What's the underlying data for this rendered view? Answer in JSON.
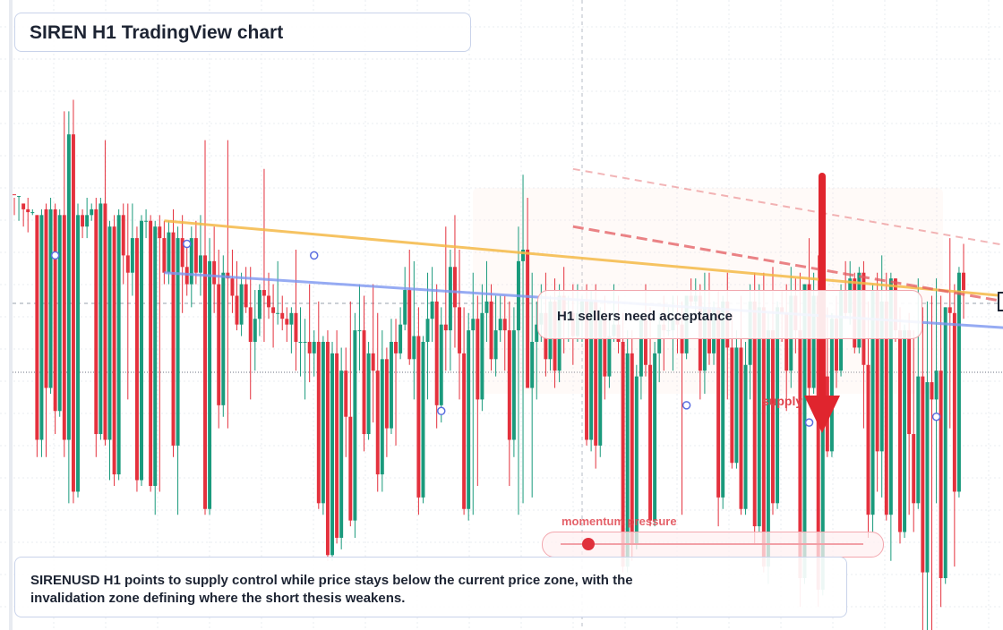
{
  "title": "SIREN H1 TradingView chart",
  "callout_text": "H1 sellers need acceptance",
  "supply_label": "supply",
  "momentum_label": "momentum pressure",
  "momentum_level": 0.07,
  "note_text": "SIRENUSD H1 points to supply control while price stays below the current price zone, with the invalidation zone defining where the short thesis weakens.",
  "colors": {
    "bull": "#1a9a7c",
    "bear": "#e4313d",
    "resistance": "#f5b947",
    "trend": "#7c96f0",
    "dashed": "#e35a5f",
    "arrow": "#e0252e"
  },
  "chart_data": {
    "type": "candlestick",
    "title": "SIREN H1 TradingView chart",
    "timeframe": "H1",
    "ylim": [
      0,
      100
    ],
    "candles": [
      [
        75.6,
        75,
        72,
        75.5
      ],
      [
        75.3,
        75.3,
        71,
        75.3
      ],
      [
        74,
        74,
        70,
        73
      ],
      [
        73,
        75,
        69,
        72.5
      ],
      [
        72.5,
        73,
        72,
        72.5
      ],
      [
        72,
        72,
        30,
        33
      ],
      [
        33,
        73,
        30,
        72
      ],
      [
        73,
        74,
        30,
        42
      ],
      [
        42,
        75,
        41,
        73
      ],
      [
        73,
        74,
        34,
        38
      ],
      [
        38,
        73,
        37,
        72
      ],
      [
        72,
        90,
        30,
        33
      ],
      [
        33,
        90,
        22,
        86
      ],
      [
        86,
        92,
        22,
        24
      ],
      [
        24,
        74,
        23,
        72
      ],
      [
        72,
        73,
        68,
        70
      ],
      [
        70,
        75,
        68,
        72
      ],
      [
        72,
        74,
        71,
        73
      ],
      [
        73,
        75,
        30,
        34
      ],
      [
        34,
        75,
        33,
        74
      ],
      [
        74,
        85,
        32,
        33
      ],
      [
        33,
        71,
        26,
        70
      ],
      [
        70,
        72,
        25,
        27
      ],
      [
        27,
        73,
        26,
        72
      ],
      [
        72,
        74,
        60,
        65
      ],
      [
        65,
        74,
        40,
        62
      ],
      [
        62,
        74,
        58,
        68
      ],
      [
        68,
        70,
        24,
        26
      ],
      [
        26,
        72,
        25,
        71
      ],
      [
        71,
        73,
        68,
        71
      ],
      [
        71,
        72,
        24,
        25
      ],
      [
        25,
        71,
        20,
        70
      ],
      [
        70,
        72,
        24,
        68
      ],
      [
        68,
        71,
        60,
        62
      ],
      [
        62,
        71,
        60,
        69
      ],
      [
        69,
        73,
        30,
        32
      ],
      [
        32,
        70,
        20,
        68
      ],
      [
        68,
        72,
        55,
        63
      ],
      [
        63,
        67,
        58,
        60
      ],
      [
        60,
        70,
        56,
        68
      ],
      [
        68,
        71,
        60,
        62
      ],
      [
        62,
        72,
        58,
        65
      ],
      [
        65,
        85,
        20,
        21
      ],
      [
        21,
        68,
        20,
        64
      ],
      [
        64,
        70,
        55,
        60
      ],
      [
        60,
        66,
        35,
        39
      ],
      [
        39,
        65,
        37,
        62
      ],
      [
        62,
        85,
        35,
        61
      ],
      [
        61,
        66,
        55,
        58
      ],
      [
        58,
        64,
        52,
        53
      ],
      [
        53,
        62,
        51,
        60
      ],
      [
        60,
        63,
        55,
        56
      ],
      [
        56,
        63,
        40,
        50
      ],
      [
        50,
        59,
        45,
        54
      ],
      [
        54,
        60,
        51,
        59
      ],
      [
        59,
        80,
        50,
        58
      ],
      [
        58,
        62,
        54,
        56
      ],
      [
        56,
        60,
        49,
        55
      ],
      [
        55,
        64,
        53,
        55
      ],
      [
        55,
        58,
        52,
        54
      ],
      [
        54,
        56,
        50,
        53
      ],
      [
        53,
        56,
        48,
        55
      ],
      [
        55,
        66,
        45,
        50
      ],
      [
        50,
        56,
        44,
        50
      ],
      [
        50,
        54,
        40,
        50
      ],
      [
        50,
        60,
        43,
        48
      ],
      [
        48,
        52,
        44,
        50
      ],
      [
        50,
        57,
        21,
        22
      ],
      [
        22,
        51,
        20,
        50
      ],
      [
        50,
        52,
        12,
        13
      ],
      [
        13,
        50,
        12,
        48
      ],
      [
        48,
        52,
        15,
        16
      ],
      [
        16,
        49,
        14,
        45
      ],
      [
        45,
        49,
        30,
        37
      ],
      [
        37,
        57,
        18,
        19
      ],
      [
        19,
        55,
        16,
        52
      ],
      [
        52,
        60,
        45,
        52
      ],
      [
        52,
        58,
        31,
        34
      ],
      [
        34,
        50,
        33,
        48
      ],
      [
        48,
        60,
        36,
        45
      ],
      [
        45,
        55,
        24,
        27
      ],
      [
        27,
        52,
        24,
        47
      ],
      [
        47,
        49,
        30,
        35
      ],
      [
        35,
        54,
        34,
        50
      ],
      [
        50,
        54,
        32,
        48
      ],
      [
        48,
        56,
        47,
        53
      ],
      [
        53,
        63,
        52,
        59
      ],
      [
        59,
        66,
        46,
        47
      ],
      [
        47,
        64,
        40,
        51
      ],
      [
        51,
        56,
        20,
        23
      ],
      [
        23,
        51,
        22,
        50
      ],
      [
        50,
        62,
        40,
        54
      ],
      [
        54,
        63,
        50,
        57
      ],
      [
        57,
        60,
        35,
        39
      ],
      [
        39,
        56,
        36,
        53
      ],
      [
        53,
        70,
        45,
        52
      ],
      [
        52,
        66,
        45,
        63
      ],
      [
        63,
        72,
        49,
        56
      ],
      [
        56,
        66,
        40,
        48
      ],
      [
        48,
        56,
        20,
        21
      ],
      [
        21,
        55,
        19,
        52
      ],
      [
        52,
        62,
        20,
        54
      ],
      [
        54,
        58,
        25,
        40
      ],
      [
        40,
        60,
        38,
        55
      ],
      [
        55,
        64,
        50,
        57
      ],
      [
        57,
        60,
        45,
        47
      ],
      [
        47,
        58,
        44,
        52
      ],
      [
        52,
        58,
        50,
        54
      ],
      [
        54,
        58,
        45,
        52
      ],
      [
        52,
        57,
        25,
        33
      ],
      [
        33,
        56,
        30,
        52
      ],
      [
        52,
        70,
        20,
        64
      ],
      [
        64,
        79,
        22,
        66
      ],
      [
        66,
        75,
        42,
        42
      ],
      [
        42,
        62,
        23,
        50
      ],
      [
        50,
        57,
        40,
        53
      ],
      [
        53,
        60,
        50,
        55
      ],
      [
        55,
        62,
        44,
        47
      ],
      [
        47,
        58,
        45,
        57
      ],
      [
        57,
        61,
        42,
        45
      ],
      [
        45,
        60,
        43,
        58
      ],
      [
        58,
        63,
        48,
        54
      ],
      [
        54,
        58,
        50,
        55
      ],
      [
        55,
        60,
        46,
        51
      ],
      [
        51,
        60,
        50,
        55
      ],
      [
        55,
        58,
        50,
        57
      ],
      [
        57,
        60,
        32,
        33
      ],
      [
        33,
        59,
        31,
        57
      ],
      [
        57,
        60,
        28,
        32
      ],
      [
        32,
        56,
        30,
        54
      ],
      [
        54,
        58,
        40,
        44
      ],
      [
        44,
        54,
        42,
        51
      ],
      [
        51,
        60,
        50,
        53
      ],
      [
        53,
        58,
        48,
        50
      ],
      [
        50,
        55,
        10,
        11
      ],
      [
        11,
        52,
        10,
        48
      ],
      [
        48,
        52,
        12,
        15
      ],
      [
        15,
        46,
        14,
        44
      ],
      [
        44,
        55,
        40,
        54
      ],
      [
        54,
        60,
        44,
        46
      ],
      [
        46,
        56,
        18,
        19
      ],
      [
        19,
        50,
        18,
        48
      ],
      [
        48,
        55,
        43,
        53
      ],
      [
        53,
        58,
        45,
        52
      ],
      [
        52,
        56,
        51,
        52
      ],
      [
        52,
        58,
        45,
        54
      ],
      [
        54,
        58,
        48,
        53
      ],
      [
        53,
        57,
        20,
        48
      ],
      [
        48,
        58,
        47,
        58
      ],
      [
        58,
        61,
        56,
        57
      ],
      [
        57,
        61,
        55,
        58
      ],
      [
        58,
        60,
        40,
        45
      ],
      [
        45,
        62,
        41,
        56
      ],
      [
        56,
        62,
        46,
        48
      ],
      [
        48,
        57,
        46,
        56
      ],
      [
        56,
        59,
        18,
        23
      ],
      [
        23,
        58,
        21,
        57
      ],
      [
        57,
        62,
        40,
        49
      ],
      [
        49,
        55,
        28,
        29
      ],
      [
        29,
        52,
        28,
        49
      ],
      [
        49,
        58,
        20,
        21
      ],
      [
        21,
        50,
        20,
        46
      ],
      [
        46,
        60,
        40,
        57
      ],
      [
        57,
        62,
        15,
        18
      ],
      [
        18,
        60,
        17,
        56
      ],
      [
        56,
        62,
        10,
        11
      ],
      [
        11,
        55,
        8,
        52
      ],
      [
        52,
        63,
        20,
        22
      ],
      [
        22,
        57,
        21,
        56
      ],
      [
        56,
        59,
        50,
        55
      ],
      [
        55,
        60,
        38,
        45
      ],
      [
        45,
        63,
        42,
        58
      ],
      [
        58,
        61,
        48,
        52
      ],
      [
        52,
        62,
        4,
        9
      ],
      [
        9,
        60,
        8,
        60
      ],
      [
        60,
        68,
        40,
        42
      ],
      [
        42,
        62,
        41,
        58
      ],
      [
        58,
        65,
        4,
        7
      ],
      [
        7,
        51,
        6,
        44
      ],
      [
        44,
        56,
        30,
        31
      ],
      [
        31,
        55,
        30,
        54
      ],
      [
        54,
        58,
        42,
        45
      ],
      [
        45,
        60,
        44,
        59
      ],
      [
        59,
        64,
        54,
        55
      ],
      [
        55,
        64,
        53,
        61
      ],
      [
        61,
        62,
        48,
        49
      ],
      [
        49,
        63,
        48,
        62
      ],
      [
        62,
        64,
        35,
        46
      ],
      [
        46,
        57,
        16,
        20
      ],
      [
        20,
        60,
        17,
        59
      ],
      [
        59,
        62,
        24,
        31
      ],
      [
        31,
        65,
        23,
        57
      ],
      [
        57,
        62,
        19,
        20
      ],
      [
        20,
        62,
        12,
        61
      ],
      [
        61,
        61,
        50,
        52
      ],
      [
        52,
        56,
        15,
        17
      ],
      [
        17,
        53,
        16,
        52
      ],
      [
        52,
        55,
        20,
        34
      ],
      [
        34,
        52,
        17,
        22
      ],
      [
        22,
        61,
        21,
        44
      ],
      [
        44,
        56,
        0,
        10
      ],
      [
        10,
        57,
        0,
        43
      ],
      [
        43,
        58,
        0,
        40
      ],
      [
        40,
        61,
        22,
        45
      ],
      [
        45,
        58,
        4,
        9
      ],
      [
        9,
        56,
        8,
        56
      ],
      [
        56,
        68,
        35,
        55
      ],
      [
        55,
        60,
        11,
        24
      ],
      [
        24,
        63,
        23,
        62
      ],
      [
        62,
        67,
        54,
        59
      ]
    ],
    "overlays": {
      "resistance_line": {
        "color": "resistance",
        "from": [
          33,
          71
        ],
        "to": [
          246,
          56
        ]
      },
      "trend_line": {
        "color": "trend",
        "from": [
          33,
          62
        ],
        "to": [
          246,
          51
        ]
      },
      "supply_dashed_lines": [
        {
          "from": [
            123,
            70
          ],
          "to": [
            218,
            57
          ]
        },
        {
          "from": [
            123,
            80
          ],
          "to": [
            238,
            64
          ]
        }
      ],
      "markers": [
        [
          9,
          65
        ],
        [
          38,
          67
        ],
        [
          66,
          65
        ],
        [
          94,
          38
        ],
        [
          148,
          39
        ],
        [
          175,
          36
        ],
        [
          203,
          37
        ],
        [
          229,
          50
        ]
      ]
    },
    "annotations": [
      "H1 sellers need acceptance",
      "supply",
      "momentum pressure"
    ],
    "grid": true
  }
}
